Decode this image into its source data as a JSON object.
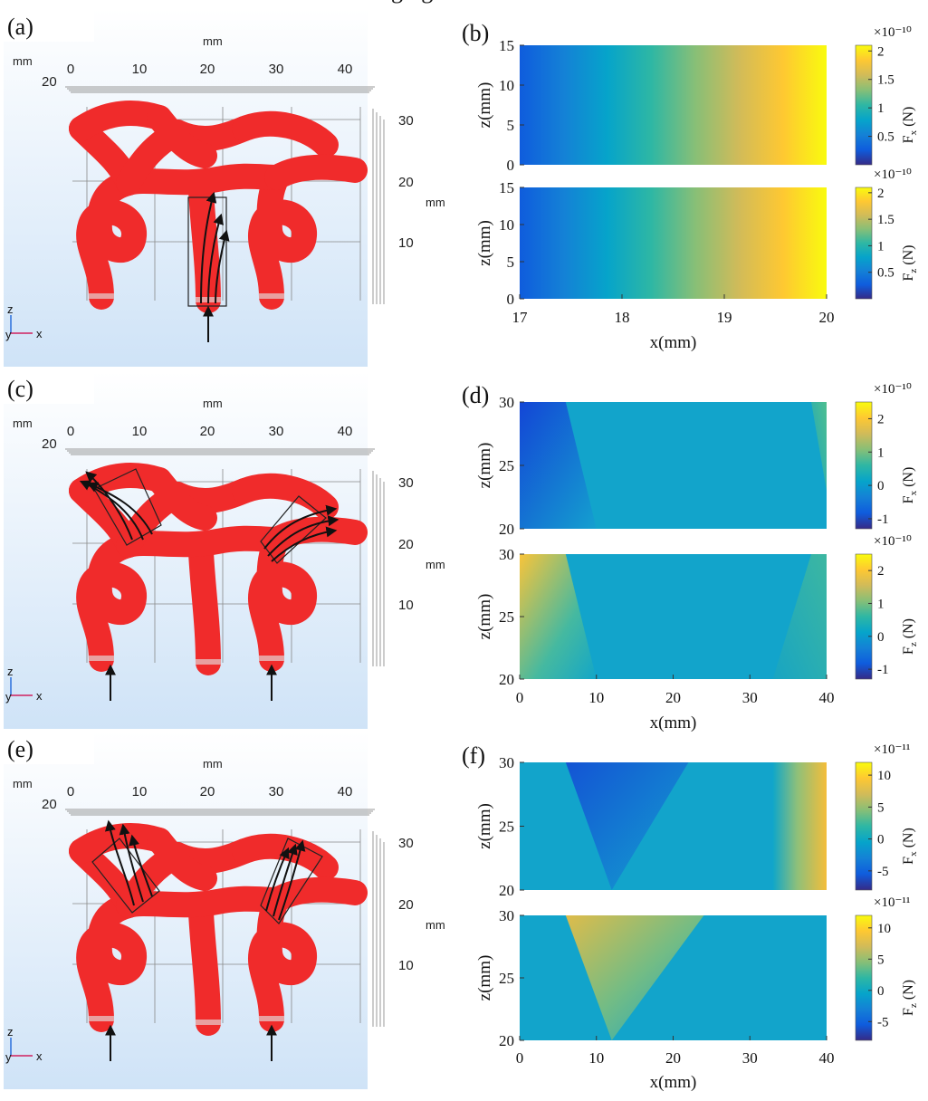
{
  "figure": {
    "header_fragment": "ging",
    "model_panels": [
      {
        "label": "(a)",
        "axis_unit": "mm",
        "x_ticks": [
          "0",
          "10",
          "20",
          "30",
          "40"
        ],
        "z_ticks": [
          "30",
          "20",
          "10"
        ],
        "depth_tick": "20",
        "triad": {
          "z": "z",
          "y": "y",
          "x": "x"
        }
      },
      {
        "label": "(c)",
        "axis_unit": "mm",
        "x_ticks": [
          "0",
          "10",
          "20",
          "30",
          "40"
        ],
        "z_ticks": [
          "30",
          "20",
          "10"
        ],
        "depth_tick": "20",
        "triad": {
          "z": "z",
          "y": "y",
          "x": "x"
        }
      },
      {
        "label": "(e)",
        "axis_unit": "mm",
        "x_ticks": [
          "0",
          "10",
          "20",
          "30",
          "40"
        ],
        "z_ticks": [
          "30",
          "20",
          "10"
        ],
        "depth_tick": "20",
        "triad": {
          "z": "z",
          "y": "y",
          "x": "x"
        }
      }
    ],
    "colors": {
      "vessel": "#f02b2b",
      "panel_bg_top": "#ffffff",
      "panel_bg_bottom": "#cfe3f7",
      "parula": [
        "#352a87",
        "#0f5cdd",
        "#1481d6",
        "#06a4ca",
        "#2eb7a4",
        "#87bf77",
        "#d1bb59",
        "#fec832",
        "#f9fb0e"
      ]
    }
  },
  "chart_data": [
    {
      "type": "heatmap",
      "panel": "(b)",
      "xlabel": "x(mm)",
      "xlim": [
        17,
        20
      ],
      "x_ticks": [
        "17",
        "18",
        "19",
        "20"
      ],
      "plots": [
        {
          "ylabel": "z(mm)",
          "ylim": [
            0,
            15
          ],
          "y_ticks": [
            "0",
            "5",
            "10",
            "15"
          ],
          "colorbar_label": "F_x (N)",
          "colorbar_label_main": "F",
          "colorbar_label_sub": "x",
          "colorbar_label_unit": " (N)",
          "colorbar_exponent": "×10⁻¹⁰",
          "colorbar_range": [
            0,
            2.1
          ],
          "colorbar_ticks": [
            "0.5",
            "1",
            "1.5",
            "2"
          ],
          "field": "gradient in x: ~0.1 at x=17 rising to ~2.1 at x=20, uniform in z"
        },
        {
          "ylabel": "z(mm)",
          "ylim": [
            0,
            15
          ],
          "y_ticks": [
            "0",
            "5",
            "10",
            "15"
          ],
          "colorbar_label": "F_z (N)",
          "colorbar_label_main": "F",
          "colorbar_label_sub": "z",
          "colorbar_label_unit": " (N)",
          "colorbar_exponent": "×10⁻¹⁰",
          "colorbar_range": [
            0,
            2.1
          ],
          "colorbar_ticks": [
            "0.5",
            "1",
            "1.5",
            "2"
          ],
          "field": "gradient in x: ~0.1 at x=17 rising to ~2.1 at x=20, uniform in z"
        }
      ]
    },
    {
      "type": "heatmap",
      "panel": "(d)",
      "xlabel": "x(mm)",
      "xlim": [
        0,
        40
      ],
      "x_ticks": [
        "0",
        "10",
        "20",
        "30",
        "40"
      ],
      "plots": [
        {
          "ylabel": "z(mm)",
          "ylim": [
            20,
            30
          ],
          "y_ticks": [
            "20",
            "25",
            "30"
          ],
          "colorbar_label": "F_x (N)",
          "colorbar_label_main": "F",
          "colorbar_label_sub": "x",
          "colorbar_label_unit": " (N)",
          "colorbar_exponent": "×10⁻¹⁰",
          "colorbar_range": [
            -1.3,
            2.5
          ],
          "colorbar_ticks": [
            "-1",
            "0",
            "1",
            "2"
          ],
          "field": "~0 in centre; negative wedge (~-1.2) at upper-left x 0-6; positive wedge (~1.2) at upper-right x 34-40"
        },
        {
          "ylabel": "z(mm)",
          "ylim": [
            20,
            30
          ],
          "y_ticks": [
            "20",
            "25",
            "30"
          ],
          "colorbar_label": "F_z (N)",
          "colorbar_label_main": "F",
          "colorbar_label_sub": "z",
          "colorbar_label_unit": " (N)",
          "colorbar_exponent": "×10⁻¹⁰",
          "colorbar_range": [
            -1.3,
            2.5
          ],
          "colorbar_ticks": [
            "-1",
            "0",
            "1",
            "2"
          ],
          "field": "~0 in centre; positive wedge (~2) at upper-left x 0-6; mildly positive wedge at upper-right x 34-40"
        }
      ]
    },
    {
      "type": "heatmap",
      "panel": "(f)",
      "xlabel": "x(mm)",
      "xlim": [
        0,
        40
      ],
      "x_ticks": [
        "0",
        "10",
        "20",
        "30",
        "40"
      ],
      "plots": [
        {
          "ylabel": "z(mm)",
          "ylim": [
            20,
            30
          ],
          "y_ticks": [
            "20",
            "25",
            "30"
          ],
          "colorbar_label": "F_x (N)",
          "colorbar_label_main": "F",
          "colorbar_label_sub": "x",
          "colorbar_label_unit": " (N)",
          "colorbar_exponent": "×10⁻¹¹",
          "colorbar_range": [
            -8,
            12
          ],
          "colorbar_ticks": [
            "-5",
            "0",
            "5",
            "10"
          ],
          "field": "~0 background; negative wedge (~-6) near x 6-12 at top; positive band (~6) at x 38-40"
        },
        {
          "ylabel": "z(mm)",
          "ylim": [
            20,
            30
          ],
          "y_ticks": [
            "20",
            "25",
            "30"
          ],
          "colorbar_label": "F_z (N)",
          "colorbar_label_main": "F",
          "colorbar_label_sub": "z",
          "colorbar_label_unit": " (N)",
          "colorbar_exponent": "×10⁻¹¹",
          "colorbar_range": [
            -8,
            12
          ],
          "colorbar_ticks": [
            "-5",
            "0",
            "5",
            "10"
          ],
          "field": "~0 background; positive wedge (~6) near x 6-12 at top"
        }
      ]
    }
  ]
}
